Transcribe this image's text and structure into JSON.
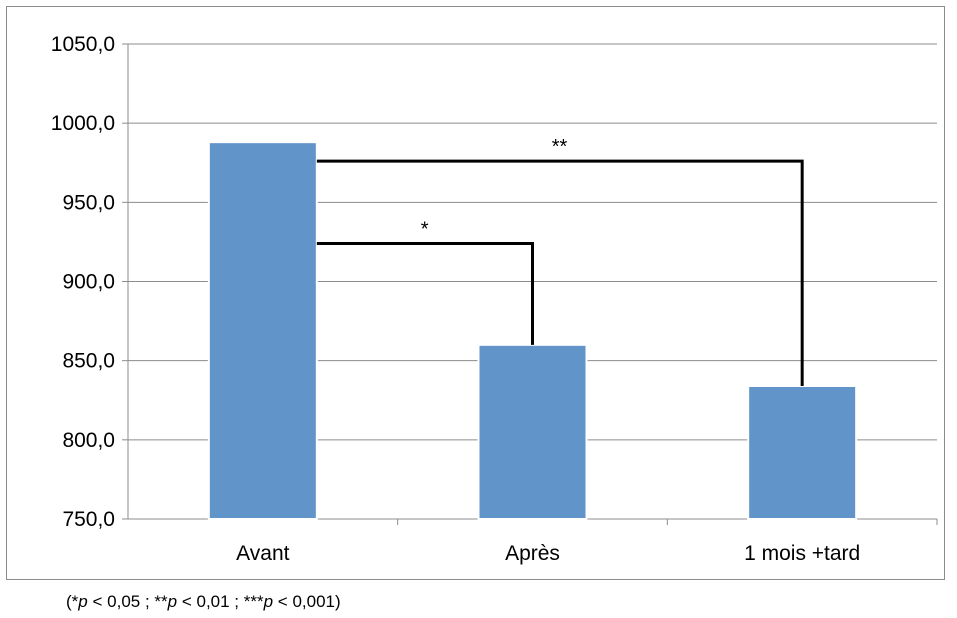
{
  "chart_data": {
    "type": "bar",
    "categories": [
      "Avant",
      "Après",
      "1 mois +tard"
    ],
    "values": [
      988.0,
      860.0,
      834.0
    ],
    "ylim": [
      750,
      1050
    ],
    "yticks": [
      750,
      800,
      850,
      900,
      950,
      1000,
      1050
    ],
    "ytick_labels": [
      "750,0",
      "800,0",
      "850,0",
      "900,0",
      "950,0",
      "1000,0",
      "1050,0"
    ],
    "grid": true,
    "colors": {
      "bar": "#6194c9",
      "bar_edge": "#ffffff",
      "grid": "#8c8c8c",
      "bracket": "#000000"
    },
    "annotations": [
      {
        "from_category": 0,
        "to_category": 1,
        "bracket_y": 924,
        "label": "*"
      },
      {
        "from_category": 0,
        "to_category": 2,
        "bracket_y": 976,
        "label": "**"
      }
    ]
  },
  "footnote": {
    "open": "(",
    "s1": "*",
    "p1": "p",
    "t1": " < 0,05 ; ",
    "s2": "**",
    "p2": "p",
    "t2": " < 0,01 ; ",
    "s3": "***",
    "p3": "p",
    "t3": " < 0,001)"
  }
}
